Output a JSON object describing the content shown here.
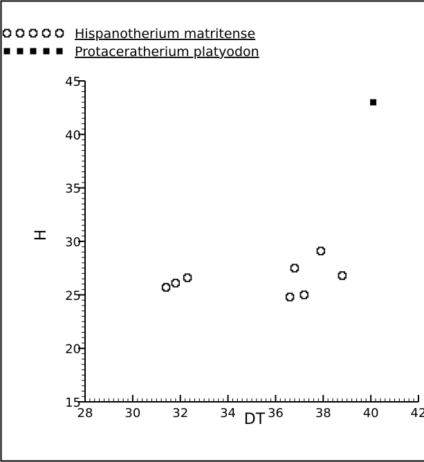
{
  "chart_data": {
    "type": "scatter",
    "xlabel": "DT",
    "ylabel": "H",
    "xlim": [
      28,
      42
    ],
    "ylim": [
      15,
      45
    ],
    "xticks": [
      28,
      30,
      32,
      34,
      36,
      38,
      40,
      42
    ],
    "yticks": [
      15,
      20,
      25,
      30,
      35,
      40,
      45
    ],
    "grid": false,
    "legend_position": "top-left",
    "series": [
      {
        "name": "Hispanotherium matritense",
        "marker": "open-cross",
        "color": "#000000",
        "points": [
          {
            "x": 31.4,
            "y": 25.7
          },
          {
            "x": 31.8,
            "y": 26.1
          },
          {
            "x": 32.3,
            "y": 26.6
          },
          {
            "x": 36.6,
            "y": 24.8
          },
          {
            "x": 37.2,
            "y": 25.0
          },
          {
            "x": 36.8,
            "y": 27.5
          },
          {
            "x": 37.9,
            "y": 29.1
          },
          {
            "x": 38.8,
            "y": 26.8
          }
        ]
      },
      {
        "name": "Protaceratherium platyodon",
        "marker": "filled-square",
        "color": "#000000",
        "points": [
          {
            "x": 40.1,
            "y": 43.0
          }
        ]
      }
    ]
  }
}
